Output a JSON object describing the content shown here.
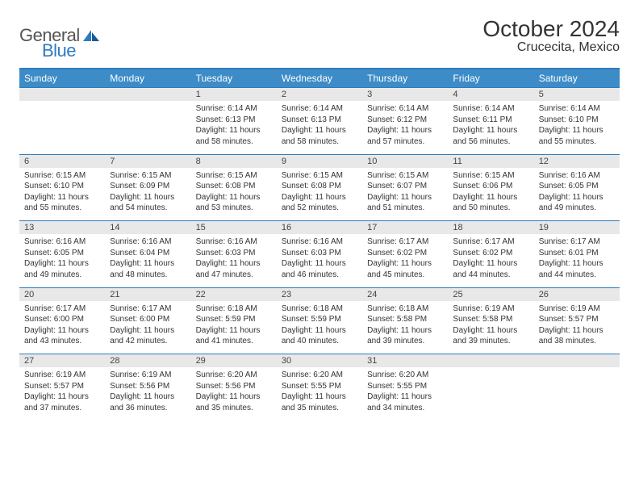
{
  "branding": {
    "logo_text_1": "General",
    "logo_text_2": "Blue",
    "logo_text1_color": "#555555",
    "logo_text2_color": "#2d7cc0",
    "logo_fontsize": 22
  },
  "title": {
    "month_year": "October 2024",
    "location": "Crucecita, Mexico",
    "title_fontsize": 28,
    "location_fontsize": 16
  },
  "styling": {
    "header_bg": "#3d8cc8",
    "header_text": "#ffffff",
    "daynum_bg": "#e8e8e8",
    "border_color": "#2d7cc0",
    "body_bg": "#ffffff",
    "body_text": "#333333",
    "cell_fontsize": 10
  },
  "dow": [
    "Sunday",
    "Monday",
    "Tuesday",
    "Wednesday",
    "Thursday",
    "Friday",
    "Saturday"
  ],
  "weeks": [
    {
      "nums": [
        "",
        "",
        "1",
        "2",
        "3",
        "4",
        "5"
      ],
      "cells": [
        null,
        null,
        {
          "sr": "Sunrise: 6:14 AM",
          "ss": "Sunset: 6:13 PM",
          "dl1": "Daylight: 11 hours",
          "dl2": "and 58 minutes."
        },
        {
          "sr": "Sunrise: 6:14 AM",
          "ss": "Sunset: 6:13 PM",
          "dl1": "Daylight: 11 hours",
          "dl2": "and 58 minutes."
        },
        {
          "sr": "Sunrise: 6:14 AM",
          "ss": "Sunset: 6:12 PM",
          "dl1": "Daylight: 11 hours",
          "dl2": "and 57 minutes."
        },
        {
          "sr": "Sunrise: 6:14 AM",
          "ss": "Sunset: 6:11 PM",
          "dl1": "Daylight: 11 hours",
          "dl2": "and 56 minutes."
        },
        {
          "sr": "Sunrise: 6:14 AM",
          "ss": "Sunset: 6:10 PM",
          "dl1": "Daylight: 11 hours",
          "dl2": "and 55 minutes."
        }
      ]
    },
    {
      "nums": [
        "6",
        "7",
        "8",
        "9",
        "10",
        "11",
        "12"
      ],
      "cells": [
        {
          "sr": "Sunrise: 6:15 AM",
          "ss": "Sunset: 6:10 PM",
          "dl1": "Daylight: 11 hours",
          "dl2": "and 55 minutes."
        },
        {
          "sr": "Sunrise: 6:15 AM",
          "ss": "Sunset: 6:09 PM",
          "dl1": "Daylight: 11 hours",
          "dl2": "and 54 minutes."
        },
        {
          "sr": "Sunrise: 6:15 AM",
          "ss": "Sunset: 6:08 PM",
          "dl1": "Daylight: 11 hours",
          "dl2": "and 53 minutes."
        },
        {
          "sr": "Sunrise: 6:15 AM",
          "ss": "Sunset: 6:08 PM",
          "dl1": "Daylight: 11 hours",
          "dl2": "and 52 minutes."
        },
        {
          "sr": "Sunrise: 6:15 AM",
          "ss": "Sunset: 6:07 PM",
          "dl1": "Daylight: 11 hours",
          "dl2": "and 51 minutes."
        },
        {
          "sr": "Sunrise: 6:15 AM",
          "ss": "Sunset: 6:06 PM",
          "dl1": "Daylight: 11 hours",
          "dl2": "and 50 minutes."
        },
        {
          "sr": "Sunrise: 6:16 AM",
          "ss": "Sunset: 6:05 PM",
          "dl1": "Daylight: 11 hours",
          "dl2": "and 49 minutes."
        }
      ]
    },
    {
      "nums": [
        "13",
        "14",
        "15",
        "16",
        "17",
        "18",
        "19"
      ],
      "cells": [
        {
          "sr": "Sunrise: 6:16 AM",
          "ss": "Sunset: 6:05 PM",
          "dl1": "Daylight: 11 hours",
          "dl2": "and 49 minutes."
        },
        {
          "sr": "Sunrise: 6:16 AM",
          "ss": "Sunset: 6:04 PM",
          "dl1": "Daylight: 11 hours",
          "dl2": "and 48 minutes."
        },
        {
          "sr": "Sunrise: 6:16 AM",
          "ss": "Sunset: 6:03 PM",
          "dl1": "Daylight: 11 hours",
          "dl2": "and 47 minutes."
        },
        {
          "sr": "Sunrise: 6:16 AM",
          "ss": "Sunset: 6:03 PM",
          "dl1": "Daylight: 11 hours",
          "dl2": "and 46 minutes."
        },
        {
          "sr": "Sunrise: 6:17 AM",
          "ss": "Sunset: 6:02 PM",
          "dl1": "Daylight: 11 hours",
          "dl2": "and 45 minutes."
        },
        {
          "sr": "Sunrise: 6:17 AM",
          "ss": "Sunset: 6:02 PM",
          "dl1": "Daylight: 11 hours",
          "dl2": "and 44 minutes."
        },
        {
          "sr": "Sunrise: 6:17 AM",
          "ss": "Sunset: 6:01 PM",
          "dl1": "Daylight: 11 hours",
          "dl2": "and 44 minutes."
        }
      ]
    },
    {
      "nums": [
        "20",
        "21",
        "22",
        "23",
        "24",
        "25",
        "26"
      ],
      "cells": [
        {
          "sr": "Sunrise: 6:17 AM",
          "ss": "Sunset: 6:00 PM",
          "dl1": "Daylight: 11 hours",
          "dl2": "and 43 minutes."
        },
        {
          "sr": "Sunrise: 6:17 AM",
          "ss": "Sunset: 6:00 PM",
          "dl1": "Daylight: 11 hours",
          "dl2": "and 42 minutes."
        },
        {
          "sr": "Sunrise: 6:18 AM",
          "ss": "Sunset: 5:59 PM",
          "dl1": "Daylight: 11 hours",
          "dl2": "and 41 minutes."
        },
        {
          "sr": "Sunrise: 6:18 AM",
          "ss": "Sunset: 5:59 PM",
          "dl1": "Daylight: 11 hours",
          "dl2": "and 40 minutes."
        },
        {
          "sr": "Sunrise: 6:18 AM",
          "ss": "Sunset: 5:58 PM",
          "dl1": "Daylight: 11 hours",
          "dl2": "and 39 minutes."
        },
        {
          "sr": "Sunrise: 6:19 AM",
          "ss": "Sunset: 5:58 PM",
          "dl1": "Daylight: 11 hours",
          "dl2": "and 39 minutes."
        },
        {
          "sr": "Sunrise: 6:19 AM",
          "ss": "Sunset: 5:57 PM",
          "dl1": "Daylight: 11 hours",
          "dl2": "and 38 minutes."
        }
      ]
    },
    {
      "nums": [
        "27",
        "28",
        "29",
        "30",
        "31",
        "",
        ""
      ],
      "cells": [
        {
          "sr": "Sunrise: 6:19 AM",
          "ss": "Sunset: 5:57 PM",
          "dl1": "Daylight: 11 hours",
          "dl2": "and 37 minutes."
        },
        {
          "sr": "Sunrise: 6:19 AM",
          "ss": "Sunset: 5:56 PM",
          "dl1": "Daylight: 11 hours",
          "dl2": "and 36 minutes."
        },
        {
          "sr": "Sunrise: 6:20 AM",
          "ss": "Sunset: 5:56 PM",
          "dl1": "Daylight: 11 hours",
          "dl2": "and 35 minutes."
        },
        {
          "sr": "Sunrise: 6:20 AM",
          "ss": "Sunset: 5:55 PM",
          "dl1": "Daylight: 11 hours",
          "dl2": "and 35 minutes."
        },
        {
          "sr": "Sunrise: 6:20 AM",
          "ss": "Sunset: 5:55 PM",
          "dl1": "Daylight: 11 hours",
          "dl2": "and 34 minutes."
        },
        null,
        null
      ]
    }
  ]
}
